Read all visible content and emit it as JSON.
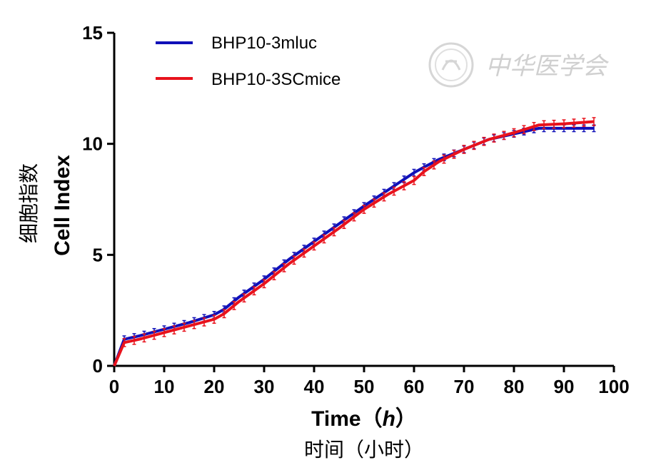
{
  "chart_data": {
    "type": "line",
    "xlabel": "Time（h）",
    "xlabel_parts": {
      "prefix": "Time（",
      "var": "h",
      "suffix": "）"
    },
    "xlabel_sub": "时间（小时）",
    "ylabel": "Cell Index",
    "ylabel_sub": "细胞指数",
    "xlim": [
      0,
      100
    ],
    "ylim": [
      0,
      15
    ],
    "x_ticks": [
      0,
      10,
      20,
      30,
      40,
      50,
      60,
      70,
      80,
      90,
      100
    ],
    "y_ticks": [
      0,
      5,
      10,
      15
    ],
    "grid": false,
    "legend_position": "top-left",
    "watermark": "中华医学会",
    "series": [
      {
        "name": "BHP10-3mluc",
        "color": "#1010b8",
        "x": [
          0,
          2,
          5,
          10,
          15,
          20,
          22,
          25,
          30,
          35,
          40,
          45,
          50,
          55,
          60,
          62,
          65,
          70,
          75,
          80,
          85,
          90,
          96
        ],
        "y": [
          0,
          1.2,
          1.35,
          1.65,
          1.95,
          2.3,
          2.55,
          3.1,
          3.9,
          4.8,
          5.6,
          6.4,
          7.2,
          7.95,
          8.7,
          8.95,
          9.3,
          9.75,
          10.2,
          10.45,
          10.7,
          10.7,
          10.7
        ],
        "err": 0.15
      },
      {
        "name": "BHP10-3SCmice",
        "color": "#e8121c",
        "x": [
          0,
          2,
          5,
          10,
          15,
          20,
          22,
          25,
          30,
          35,
          40,
          45,
          50,
          55,
          60,
          62,
          65,
          70,
          75,
          80,
          85,
          90,
          96
        ],
        "y": [
          0,
          1.05,
          1.2,
          1.5,
          1.8,
          2.1,
          2.35,
          2.9,
          3.7,
          4.6,
          5.4,
          6.2,
          7.05,
          7.75,
          8.35,
          8.75,
          9.2,
          9.75,
          10.2,
          10.5,
          10.85,
          10.9,
          11.0
        ],
        "err": 0.18
      }
    ]
  }
}
